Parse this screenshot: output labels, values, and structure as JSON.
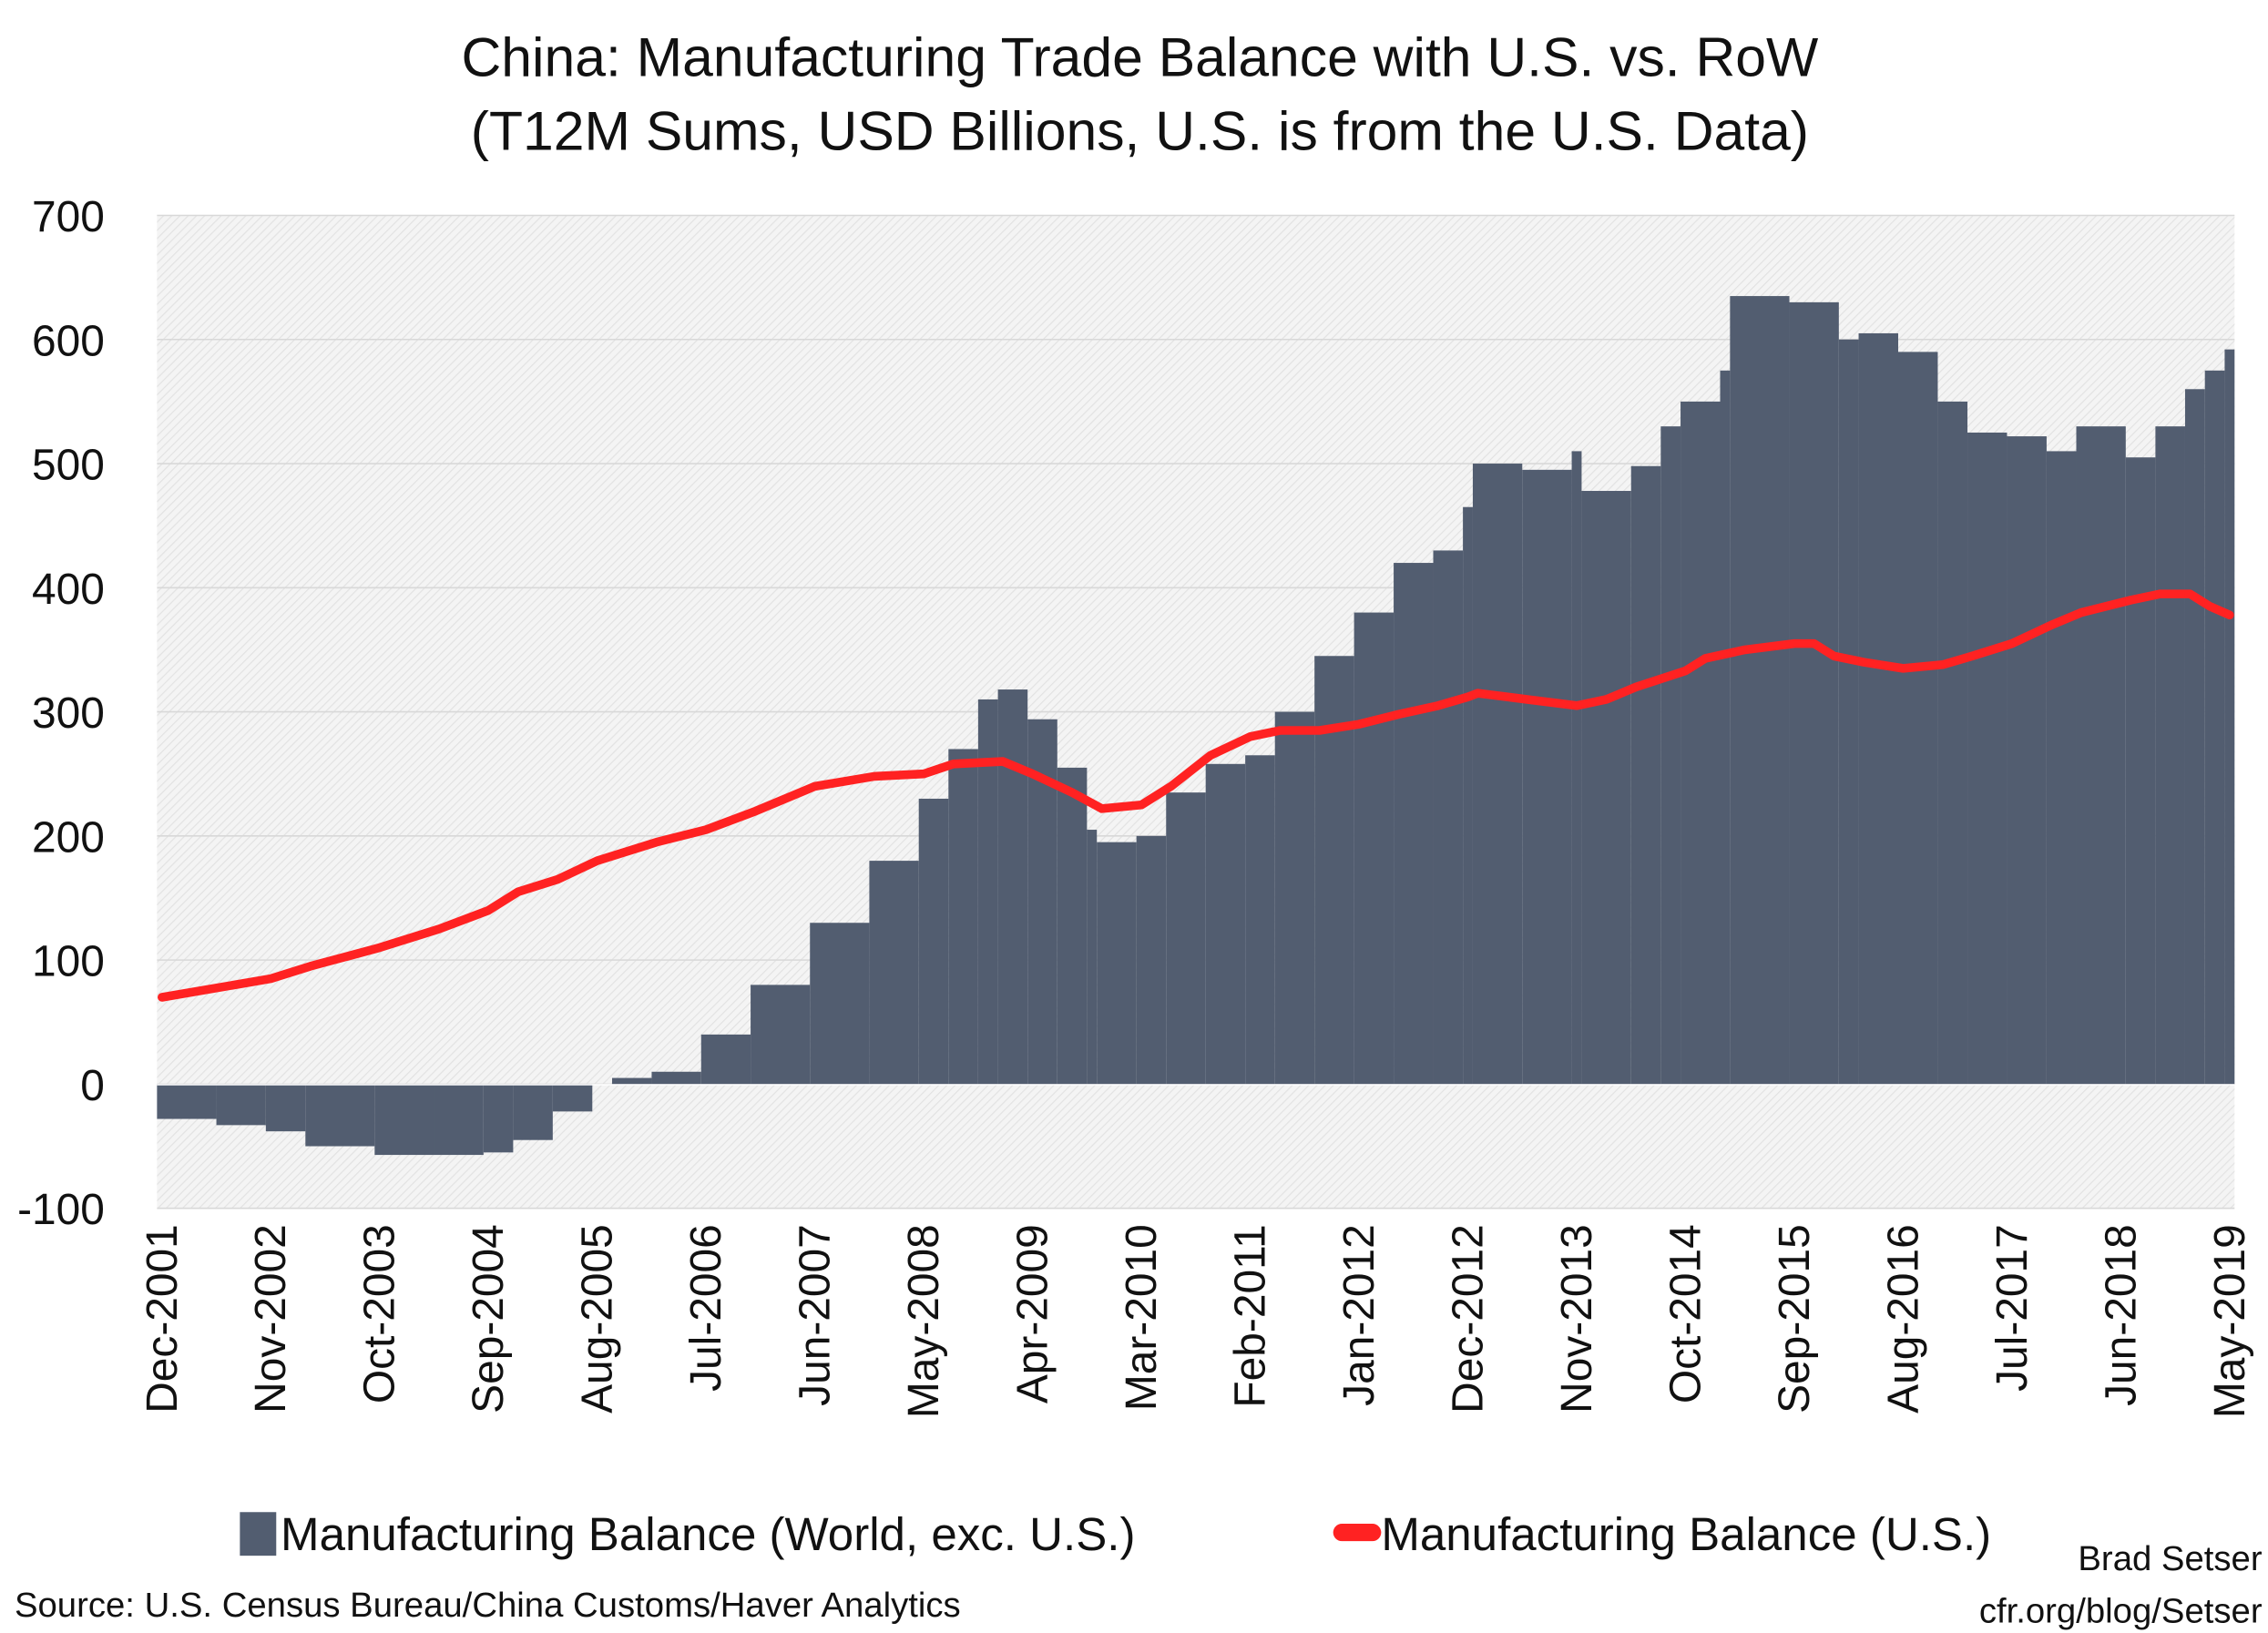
{
  "chart_data": {
    "type": "bar+line",
    "title": "China: Manufacturing Trade Balance with U.S. vs. RoW",
    "subtitle": "(T12M Sums, USD Billions, U.S. is from the U.S. Data)",
    "ylim": [
      -100,
      700
    ],
    "yticks": [
      "700",
      "600",
      "500",
      "400",
      "300",
      "200",
      "100",
      "0",
      "-100"
    ],
    "xticks": [
      "Dec-2001",
      "Nov-2002",
      "Oct-2003",
      "Sep-2004",
      "Aug-2005",
      "Jul-2006",
      "Jun-2007",
      "May-2008",
      "Apr-2009",
      "Mar-2010",
      "Feb-2011",
      "Jan-2012",
      "Dec-2012",
      "Nov-2013",
      "Oct-2014",
      "Sep-2015",
      "Aug-2016",
      "Jul-2017",
      "Jun-2018",
      "May-2019"
    ],
    "xrange": [
      "2001-12",
      "2019-05"
    ],
    "grid": true,
    "legend_position": "bottom",
    "colors": {
      "world": "#525d70",
      "us": "#ff2222",
      "plot_bg": "#efefef"
    },
    "series": [
      {
        "name": "Manufacturing Balance (World, exc. U.S.)",
        "kind": "bar",
        "points": [
          [
            "2001-12",
            -28
          ],
          [
            "2002-06",
            -33
          ],
          [
            "2002-11",
            -38
          ],
          [
            "2003-03",
            -50
          ],
          [
            "2003-10",
            -57
          ],
          [
            "2004-04",
            -57
          ],
          [
            "2004-09",
            -55
          ],
          [
            "2004-12",
            -45
          ],
          [
            "2005-04",
            -22
          ],
          [
            "2005-08",
            0
          ],
          [
            "2005-10",
            5
          ],
          [
            "2006-02",
            10
          ],
          [
            "2006-07",
            40
          ],
          [
            "2006-12",
            80
          ],
          [
            "2007-06",
            130
          ],
          [
            "2007-12",
            180
          ],
          [
            "2008-05",
            230
          ],
          [
            "2008-08",
            270
          ],
          [
            "2008-11",
            310
          ],
          [
            "2009-01",
            318
          ],
          [
            "2009-04",
            294
          ],
          [
            "2009-07",
            255
          ],
          [
            "2009-10",
            205
          ],
          [
            "2009-11",
            195
          ],
          [
            "2010-03",
            200
          ],
          [
            "2010-06",
            235
          ],
          [
            "2010-10",
            258
          ],
          [
            "2011-02",
            265
          ],
          [
            "2011-05",
            300
          ],
          [
            "2011-09",
            345
          ],
          [
            "2012-01",
            380
          ],
          [
            "2012-05",
            420
          ],
          [
            "2012-09",
            430
          ],
          [
            "2012-12",
            465
          ],
          [
            "2013-01",
            500
          ],
          [
            "2013-06",
            495
          ],
          [
            "2013-11",
            510
          ],
          [
            "2013-12",
            478
          ],
          [
            "2014-05",
            498
          ],
          [
            "2014-08",
            530
          ],
          [
            "2014-10",
            550
          ],
          [
            "2015-02",
            575
          ],
          [
            "2015-03",
            635
          ],
          [
            "2015-09",
            630
          ],
          [
            "2016-02",
            600
          ],
          [
            "2016-04",
            605
          ],
          [
            "2016-08",
            590
          ],
          [
            "2016-12",
            550
          ],
          [
            "2017-03",
            525
          ],
          [
            "2017-07",
            522
          ],
          [
            "2017-11",
            510
          ],
          [
            "2018-02",
            530
          ],
          [
            "2018-07",
            505
          ],
          [
            "2018-10",
            530
          ],
          [
            "2019-01",
            560
          ],
          [
            "2019-03",
            575
          ],
          [
            "2019-05",
            592
          ]
        ]
      },
      {
        "name": "Manufacturing Balance (U.S.)",
        "kind": "line",
        "points": [
          [
            "2001-12",
            70
          ],
          [
            "2002-11",
            85
          ],
          [
            "2003-03",
            95
          ],
          [
            "2003-10",
            110
          ],
          [
            "2004-04",
            125
          ],
          [
            "2004-09",
            140
          ],
          [
            "2004-12",
            155
          ],
          [
            "2005-04",
            165
          ],
          [
            "2005-08",
            180
          ],
          [
            "2006-02",
            195
          ],
          [
            "2006-07",
            205
          ],
          [
            "2006-12",
            220
          ],
          [
            "2007-06",
            240
          ],
          [
            "2007-12",
            248
          ],
          [
            "2008-05",
            250
          ],
          [
            "2008-08",
            258
          ],
          [
            "2009-01",
            260
          ],
          [
            "2009-04",
            250
          ],
          [
            "2009-08",
            235
          ],
          [
            "2009-11",
            222
          ],
          [
            "2010-03",
            225
          ],
          [
            "2010-06",
            240
          ],
          [
            "2010-10",
            265
          ],
          [
            "2011-02",
            280
          ],
          [
            "2011-05",
            285
          ],
          [
            "2011-09",
            285
          ],
          [
            "2012-01",
            290
          ],
          [
            "2012-05",
            298
          ],
          [
            "2012-09",
            305
          ],
          [
            "2012-12",
            312
          ],
          [
            "2013-01",
            315
          ],
          [
            "2013-06",
            310
          ],
          [
            "2013-11",
            305
          ],
          [
            "2014-02",
            310
          ],
          [
            "2014-05",
            320
          ],
          [
            "2014-10",
            333
          ],
          [
            "2014-12",
            343
          ],
          [
            "2015-04",
            350
          ],
          [
            "2015-09",
            355
          ],
          [
            "2015-11",
            355
          ],
          [
            "2016-01",
            345
          ],
          [
            "2016-04",
            340
          ],
          [
            "2016-08",
            335
          ],
          [
            "2016-12",
            338
          ],
          [
            "2017-03",
            345
          ],
          [
            "2017-07",
            355
          ],
          [
            "2017-11",
            370
          ],
          [
            "2018-02",
            380
          ],
          [
            "2018-07",
            390
          ],
          [
            "2018-10",
            395
          ],
          [
            "2019-01",
            395
          ],
          [
            "2019-03",
            385
          ],
          [
            "2019-05",
            378
          ]
        ]
      }
    ]
  },
  "legend": {
    "world": "Manufacturing Balance (World, exc. U.S.)",
    "us": "Manufacturing Balance (U.S.)"
  },
  "footer": {
    "source": "Source: U.S. Census Bureau/China Customs/Haver Analytics",
    "author": "Brad Setser",
    "site": "cfr.org/blog/Setser"
  }
}
